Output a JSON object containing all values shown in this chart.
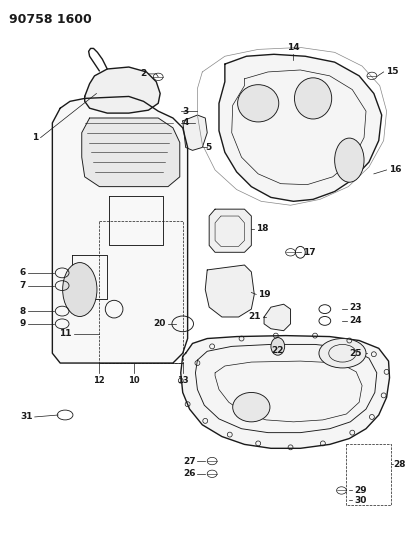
{
  "title": "90758 1600",
  "bg_color": "#ffffff",
  "line_color": "#1a1a1a",
  "fig_width": 4.08,
  "fig_height": 5.33,
  "dpi": 100
}
